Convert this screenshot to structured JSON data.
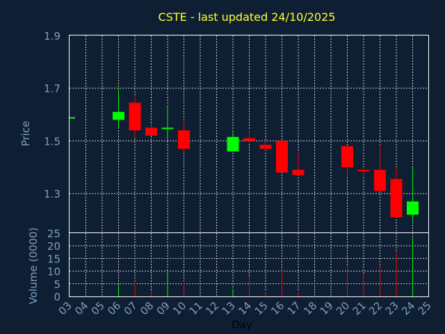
{
  "title": "CSTE - last updated 24/10/2025",
  "colors": {
    "background": "#0f1f33",
    "title": "#ffff33",
    "axis_text": "#7f9fbf",
    "up": "#00ff00",
    "down": "#ff0000"
  },
  "chart_data": [
    {
      "type": "candlestick",
      "ylabel": "Price",
      "ylim": [
        1.15,
        1.9
      ],
      "yticks": [
        "1.9",
        "1.7",
        "1.5",
        "1.3"
      ],
      "grid": true,
      "days": [
        "03",
        "06",
        "07",
        "08",
        "09",
        "10",
        "13",
        "14",
        "15",
        "16",
        "17",
        "20",
        "21",
        "22",
        "23",
        "24"
      ],
      "open": [
        1.59,
        1.58,
        1.645,
        1.55,
        1.545,
        1.54,
        1.46,
        1.51,
        1.485,
        1.5,
        1.39,
        1.48,
        1.39,
        1.39,
        1.355,
        1.22
      ],
      "high": [
        1.59,
        1.7,
        1.67,
        1.56,
        1.635,
        1.58,
        1.54,
        1.54,
        1.5,
        1.5,
        1.455,
        1.48,
        1.4,
        1.485,
        1.4,
        1.4
      ],
      "low": [
        1.59,
        1.55,
        1.51,
        1.52,
        1.51,
        1.455,
        1.46,
        1.49,
        1.465,
        1.38,
        1.37,
        1.36,
        1.36,
        1.31,
        1.21,
        1.195
      ],
      "close": [
        1.59,
        1.61,
        1.54,
        1.52,
        1.55,
        1.47,
        1.515,
        1.5,
        1.47,
        1.38,
        1.37,
        1.4,
        1.385,
        1.31,
        1.21,
        1.27
      ]
    },
    {
      "type": "bar",
      "ylabel": "Volume (0000)",
      "xlabel": "Day",
      "ylim": [
        0,
        25
      ],
      "yticks": [
        "25",
        "20",
        "15",
        "10",
        "5",
        "0"
      ],
      "grid": true,
      "x_tick_labels": [
        "03",
        "04",
        "05",
        "06",
        "07",
        "08",
        "09",
        "10",
        "11",
        "12",
        "13",
        "14",
        "15",
        "16",
        "17",
        "18",
        "19",
        "20",
        "21",
        "22",
        "23",
        "24",
        "25"
      ],
      "days": [
        "03",
        "06",
        "07",
        "08",
        "09",
        "10",
        "13",
        "14",
        "15",
        "16",
        "17",
        "20",
        "21",
        "22",
        "23",
        "24"
      ],
      "values": [
        0.3,
        4.5,
        6,
        2.5,
        9,
        6,
        3,
        8,
        2,
        10.5,
        2,
        12,
        9,
        12.5,
        18,
        23
      ]
    }
  ]
}
